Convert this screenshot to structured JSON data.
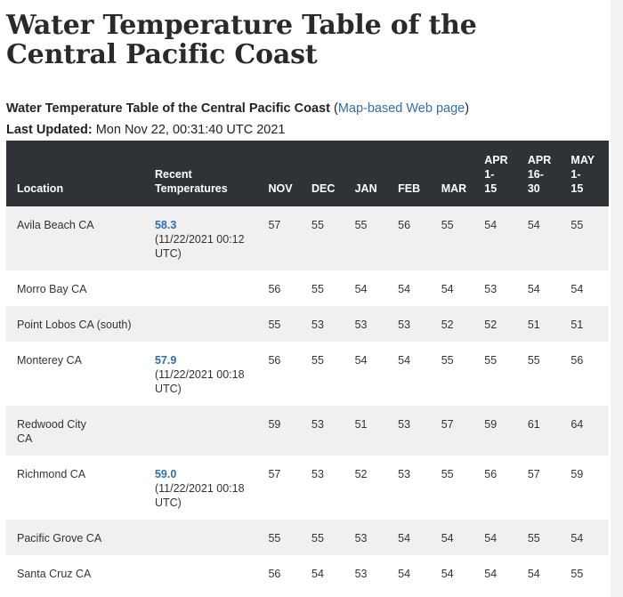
{
  "page": {
    "title": "Water Temperature Table of the Central Pacific Coast",
    "subtitle": "Water Temperature Table of the Central Pacific Coast",
    "map_link_open": "(",
    "map_link_text": "Map-based Web page",
    "map_link_close": ")",
    "last_updated_label": "Last Updated:",
    "last_updated_value": "Mon Nov 22, 00:31:40 UTC 2021"
  },
  "table": {
    "headers": {
      "location": "Location",
      "recent_line1": "Recent",
      "recent_line2": "Temperatures",
      "nov": "NOV",
      "dec": "DEC",
      "jan": "JAN",
      "feb": "FEB",
      "mar": "MAR",
      "apr1_a": "APR",
      "apr1_b": "1-",
      "apr1_c": "15",
      "apr2_a": "APR",
      "apr2_b": "16-",
      "apr2_c": "30",
      "may_a": "MAY",
      "may_b": "1-",
      "may_c": "15"
    },
    "rows": [
      {
        "location": "Avila Beach CA",
        "recent": "58.3",
        "recent_time": "(11/22/2021 00:12 UTC)",
        "values": [
          "57",
          "55",
          "55",
          "56",
          "55",
          "54",
          "54",
          "55"
        ]
      },
      {
        "location": "Morro Bay CA",
        "recent": "",
        "recent_time": "",
        "values": [
          "56",
          "55",
          "54",
          "54",
          "54",
          "53",
          "54",
          "54"
        ]
      },
      {
        "location": "Point Lobos CA (south)",
        "recent": "",
        "recent_time": "",
        "values": [
          "55",
          "53",
          "53",
          "53",
          "52",
          "52",
          "51",
          "51"
        ]
      },
      {
        "location": "Monterey CA",
        "recent": "57.9",
        "recent_time": "(11/22/2021 00:18 UTC)",
        "values": [
          "56",
          "55",
          "54",
          "54",
          "55",
          "55",
          "55",
          "56"
        ]
      },
      {
        "location": "Redwood City CA",
        "recent": "",
        "recent_time": "",
        "values": [
          "59",
          "53",
          "51",
          "53",
          "57",
          "59",
          "61",
          "64"
        ]
      },
      {
        "location": "Richmond CA",
        "recent": "59.0",
        "recent_time": "(11/22/2021 00:18 UTC)",
        "values": [
          "57",
          "53",
          "52",
          "53",
          "55",
          "56",
          "57",
          "59"
        ]
      },
      {
        "location": "Pacific Grove CA",
        "recent": "",
        "recent_time": "",
        "values": [
          "55",
          "55",
          "53",
          "54",
          "54",
          "54",
          "55",
          "54"
        ]
      },
      {
        "location": "Santa Cruz CA",
        "recent": "",
        "recent_time": "",
        "values": [
          "56",
          "54",
          "53",
          "54",
          "54",
          "54",
          "54",
          "55"
        ]
      }
    ]
  }
}
